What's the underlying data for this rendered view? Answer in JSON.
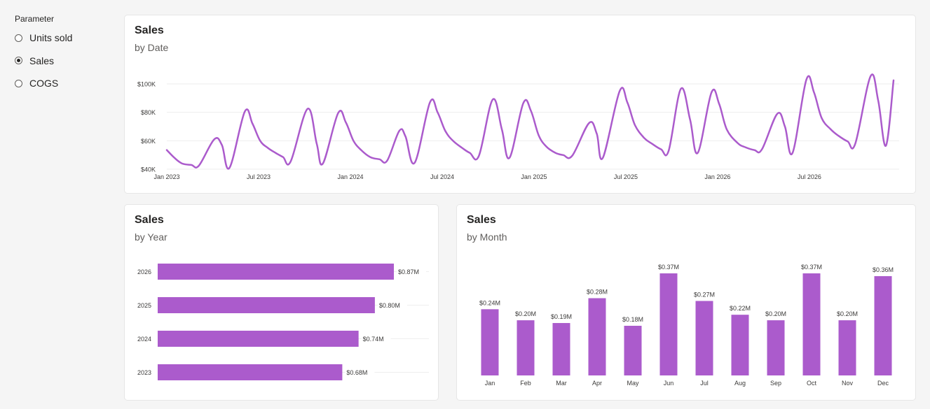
{
  "parameter": {
    "title": "Parameter",
    "options": [
      {
        "label": "Units sold",
        "selected": false
      },
      {
        "label": "Sales",
        "selected": true
      },
      {
        "label": "COGS",
        "selected": false
      }
    ]
  },
  "colors": {
    "series": "#ab5bcc",
    "grid": "#eeeeee"
  },
  "cards": {
    "date": {
      "title": "Sales",
      "subtitle": "by Date"
    },
    "year": {
      "title": "Sales",
      "subtitle": "by Year"
    },
    "month": {
      "title": "Sales",
      "subtitle": "by Month"
    }
  },
  "chart_data": [
    {
      "type": "line",
      "title": "Sales",
      "subtitle": "by Date",
      "y_ticks": [
        "$40K",
        "$60K",
        "$80K",
        "$100K"
      ],
      "y_tick_values": [
        40000,
        60000,
        80000,
        100000
      ],
      "ylim": [
        40000,
        100000
      ],
      "x_ticks": [
        "Jan 2023",
        "Jul 2023",
        "Jan 2024",
        "Jul 2024",
        "Jan 2025",
        "Jul 2025",
        "Jan 2026",
        "Jul 2026"
      ],
      "x_tick_months": [
        0,
        6,
        12,
        18,
        24,
        30,
        36,
        42
      ],
      "x_range_months": [
        0,
        47.5
      ],
      "grid": true,
      "series": [
        {
          "points": [
            [
              0.0,
              53500
            ],
            [
              0.5,
              48000
            ],
            [
              1.0,
              44000
            ],
            [
              1.6,
              43000
            ],
            [
              2.1,
              42500
            ],
            [
              3.1,
              61000
            ],
            [
              3.6,
              57000
            ],
            [
              4.1,
              41000
            ],
            [
              5.1,
              80500
            ],
            [
              5.6,
              72000
            ],
            [
              6.1,
              60000
            ],
            [
              6.6,
              55000
            ],
            [
              7.1,
              51500
            ],
            [
              7.6,
              48500
            ],
            [
              8.1,
              45500
            ],
            [
              9.2,
              82500
            ],
            [
              9.8,
              58000
            ],
            [
              10.2,
              44000
            ],
            [
              11.2,
              79500
            ],
            [
              11.7,
              73000
            ],
            [
              12.2,
              60000
            ],
            [
              12.7,
              53500
            ],
            [
              13.3,
              48500
            ],
            [
              13.9,
              47000
            ],
            [
              14.4,
              46000
            ],
            [
              15.2,
              67000
            ],
            [
              15.6,
              63000
            ],
            [
              16.2,
              44500
            ],
            [
              17.2,
              87000
            ],
            [
              17.7,
              80000
            ],
            [
              18.2,
              67000
            ],
            [
              18.7,
              60000
            ],
            [
              19.3,
              55000
            ],
            [
              19.8,
              51500
            ],
            [
              20.4,
              49500
            ],
            [
              21.3,
              89000
            ],
            [
              21.9,
              68000
            ],
            [
              22.4,
              48000
            ],
            [
              23.3,
              86500
            ],
            [
              23.8,
              81000
            ],
            [
              24.3,
              64000
            ],
            [
              24.8,
              56000
            ],
            [
              25.4,
              51500
            ],
            [
              25.9,
              50000
            ],
            [
              26.5,
              49500
            ],
            [
              27.6,
              72500
            ],
            [
              28.1,
              65000
            ],
            [
              28.5,
              48000
            ],
            [
              29.6,
              95000
            ],
            [
              30.1,
              87000
            ],
            [
              30.6,
              71000
            ],
            [
              31.2,
              62000
            ],
            [
              31.7,
              58000
            ],
            [
              32.3,
              54000
            ],
            [
              32.8,
              53000
            ],
            [
              33.6,
              96500
            ],
            [
              34.2,
              75000
            ],
            [
              34.7,
              51500
            ],
            [
              35.6,
              94000
            ],
            [
              36.1,
              86000
            ],
            [
              36.6,
              68000
            ],
            [
              37.3,
              58500
            ],
            [
              37.8,
              55500
            ],
            [
              38.4,
              53500
            ],
            [
              38.9,
              54000
            ],
            [
              39.9,
              79000
            ],
            [
              40.4,
              70000
            ],
            [
              40.9,
              51500
            ],
            [
              41.8,
              103000
            ],
            [
              42.3,
              94000
            ],
            [
              42.8,
              76000
            ],
            [
              43.4,
              68000
            ],
            [
              43.9,
              63500
            ],
            [
              44.5,
              59500
            ],
            [
              45.0,
              58000
            ],
            [
              46.0,
              105500
            ],
            [
              46.5,
              88000
            ],
            [
              47.0,
              56500
            ],
            [
              47.5,
              102500
            ]
          ]
        }
      ]
    },
    {
      "type": "bar",
      "orientation": "horizontal",
      "title": "Sales",
      "subtitle": "by Year",
      "categories": [
        "2026",
        "2025",
        "2024",
        "2023"
      ],
      "values": [
        0.87,
        0.8,
        0.74,
        0.68
      ],
      "labels": [
        "$0.87M",
        "$0.80M",
        "$0.74M",
        "$0.68M"
      ],
      "xlim": [
        0,
        0.87
      ]
    },
    {
      "type": "bar",
      "orientation": "vertical",
      "title": "Sales",
      "subtitle": "by Month",
      "categories": [
        "Jan",
        "Feb",
        "Mar",
        "Apr",
        "May",
        "Jun",
        "Jul",
        "Aug",
        "Sep",
        "Oct",
        "Nov",
        "Dec"
      ],
      "values": [
        0.24,
        0.2,
        0.19,
        0.28,
        0.18,
        0.37,
        0.27,
        0.22,
        0.2,
        0.37,
        0.2,
        0.36
      ],
      "labels": [
        "$0.24M",
        "$0.20M",
        "$0.19M",
        "$0.28M",
        "$0.18M",
        "$0.37M",
        "$0.27M",
        "$0.22M",
        "$0.20M",
        "$0.37M",
        "$0.20M",
        "$0.36M"
      ],
      "ylim": [
        0,
        0.37
      ]
    }
  ]
}
